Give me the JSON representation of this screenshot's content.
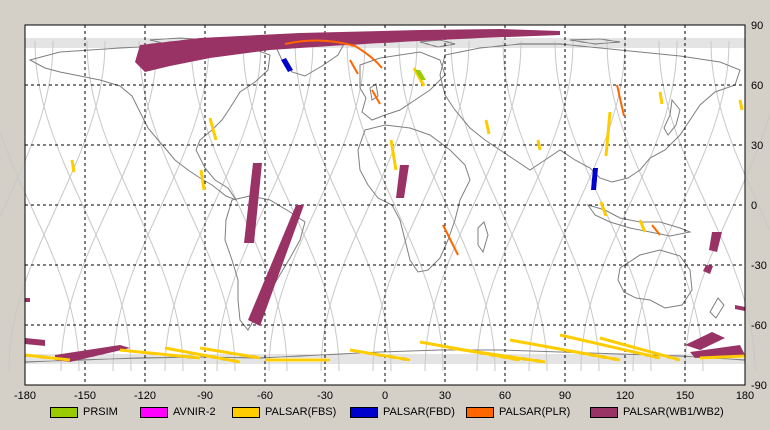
{
  "map": {
    "lon_ticks": [
      "-180",
      "-150",
      "-120",
      "-90",
      "-60",
      "-30",
      "0",
      "30",
      "60",
      "90",
      "120",
      "150",
      "180"
    ],
    "lat_ticks": [
      "90",
      "60",
      "30",
      "0",
      "-30",
      "-60",
      "-90"
    ],
    "lon_range": [
      -180,
      180
    ],
    "lat_range": [
      -90,
      90
    ],
    "grid": true,
    "colors": {
      "background": "#ffffff",
      "coastline": "#7f7f7f",
      "orbit_tracks": "#c8c8c8",
      "grid": "#000000"
    }
  },
  "legend": [
    {
      "label": "PRSIM",
      "color": "#99cc00"
    },
    {
      "label": "AVNIR-2",
      "color": "#ff00ff"
    },
    {
      "label": "PALSAR(FBS)",
      "color": "#ffcc00"
    },
    {
      "label": "PALSAR(FBD)",
      "color": "#0000cc"
    },
    {
      "label": "PALSAR(PLR)",
      "color": "#ff6600"
    },
    {
      "label": "PALSAR(WB1/WB2)",
      "color": "#993366"
    }
  ]
}
